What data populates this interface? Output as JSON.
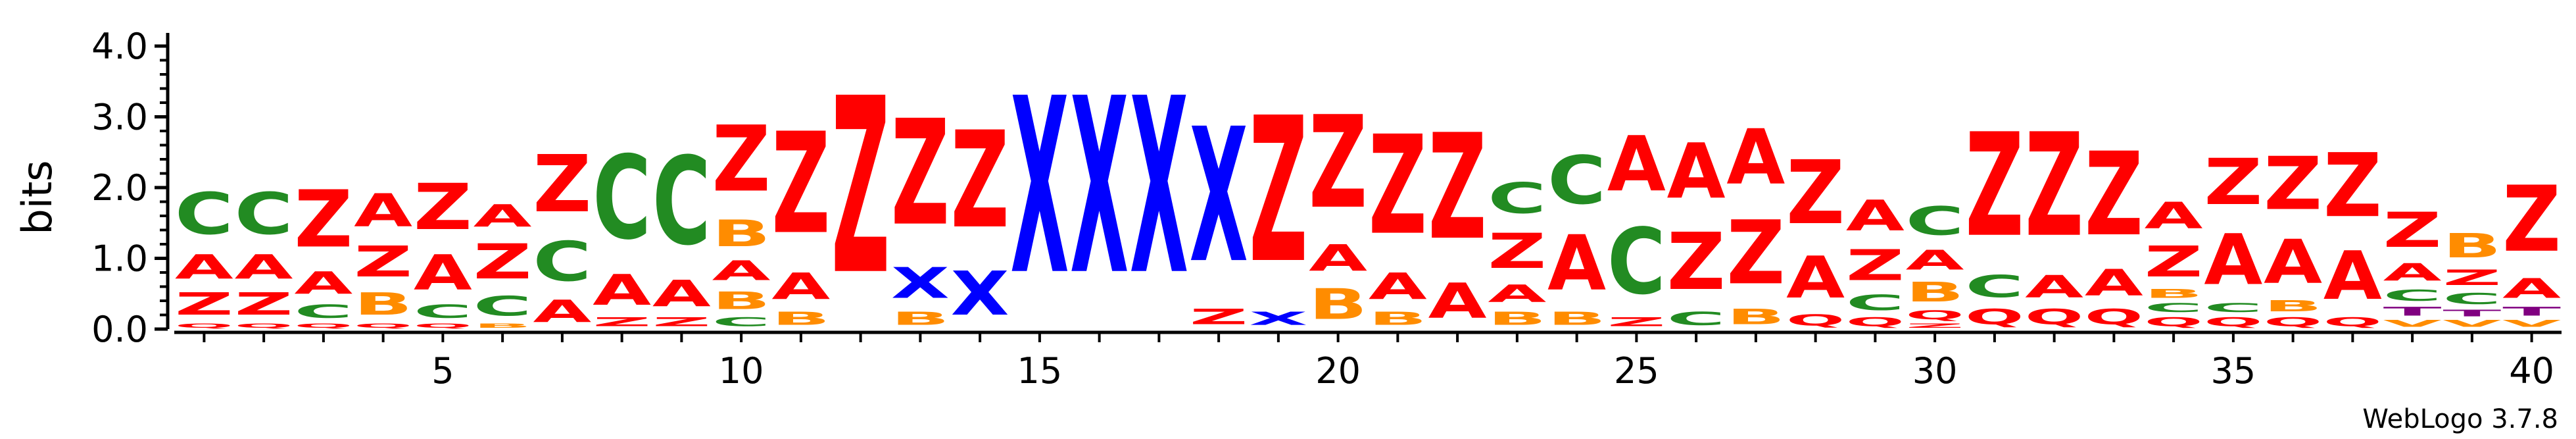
{
  "chart_data": {
    "type": "sequence-logo",
    "title": "",
    "ylabel": "bits",
    "xlabel": "",
    "ylim": [
      0,
      4.0
    ],
    "y_ticks": [
      "0.0",
      "1.0",
      "2.0",
      "3.0",
      "4.0"
    ],
    "x_ticks": [
      5,
      10,
      15,
      20,
      25,
      30,
      35,
      40
    ],
    "x_tick_labels": [
      "5",
      "10",
      "15",
      "20",
      "25",
      "30",
      "35",
      "40"
    ],
    "credit": "WebLogo 3.7.8",
    "colors": {
      "A": "#ff0000",
      "Z": "#ff0000",
      "C": "#228b22",
      "B": "#ff8c00",
      "Q": "#ff0000",
      "X": "#0000ff",
      "T": "#800080",
      "V": "#ff8c00"
    },
    "columns": [
      [
        [
          "Q",
          0.1
        ],
        [
          "Z",
          0.5
        ],
        [
          "A",
          0.55
        ],
        [
          "C",
          0.95
        ]
      ],
      [
        [
          "Q",
          0.1
        ],
        [
          "Z",
          0.5
        ],
        [
          "A",
          0.55
        ],
        [
          "C",
          0.95
        ]
      ],
      [
        [
          "Q",
          0.1
        ],
        [
          "C",
          0.3
        ],
        [
          "A",
          0.5
        ],
        [
          "Z",
          1.3
        ]
      ],
      [
        [
          "Q",
          0.1
        ],
        [
          "B",
          0.5
        ],
        [
          "Z",
          0.7
        ],
        [
          "A",
          0.75
        ]
      ],
      [
        [
          "Q",
          0.1
        ],
        [
          "C",
          0.3
        ],
        [
          "A",
          0.8
        ],
        [
          "Z",
          1.05
        ]
      ],
      [
        [
          "B",
          0.1
        ],
        [
          "C",
          0.45
        ],
        [
          "Z",
          0.8
        ],
        [
          "A",
          0.5
        ]
      ],
      [
        [
          "A",
          0.5
        ],
        [
          "C",
          0.9
        ],
        [
          "Z",
          1.3
        ]
      ],
      [
        [
          "Z",
          0.2
        ],
        [
          "A",
          0.7
        ],
        [
          "C",
          1.9
        ]
      ],
      [
        [
          "Z",
          0.2
        ],
        [
          "A",
          0.6
        ],
        [
          "C",
          2.0
        ]
      ],
      [
        [
          "C",
          0.2
        ],
        [
          "B",
          0.4
        ],
        [
          "A",
          0.45
        ],
        [
          "B",
          0.6
        ],
        [
          "Z",
          1.5
        ]
      ],
      [
        [
          "B",
          0.3
        ],
        [
          "A",
          0.6
        ],
        [
          "Z",
          2.3
        ]
      ],
      [
        [
          "Z",
          4.0
        ]
      ],
      [
        [
          "B",
          0.3
        ],
        [
          "X",
          0.7
        ],
        [
          "Z",
          2.4
        ]
      ],
      [
        [
          "X",
          1.0
        ],
        [
          "Z",
          2.2
        ]
      ],
      [
        [
          "X",
          4.0
        ]
      ],
      [
        [
          "X",
          4.0
        ]
      ],
      [
        [
          "X",
          4.0
        ]
      ],
      [
        [
          "Z",
          0.35
        ],
        [
          "X",
          3.05
        ]
      ],
      [
        [
          "X",
          0.3
        ],
        [
          "Z",
          3.3
        ]
      ],
      [
        [
          "B",
          0.7
        ],
        [
          "A",
          0.6
        ],
        [
          "Z",
          2.1
        ]
      ],
      [
        [
          "B",
          0.3
        ],
        [
          "A",
          0.6
        ],
        [
          "Z",
          2.25
        ]
      ],
      [
        [
          "A",
          0.8
        ],
        [
          "Z",
          2.4
        ]
      ],
      [
        [
          "B",
          0.3
        ],
        [
          "A",
          0.4
        ],
        [
          "Z",
          0.8
        ],
        [
          "C",
          0.7
        ]
      ],
      [
        [
          "B",
          0.3
        ],
        [
          "A",
          1.25
        ],
        [
          "C",
          1.1
        ]
      ],
      [
        [
          "Z",
          0.2
        ],
        [
          "C",
          1.5
        ],
        [
          "A",
          1.25
        ]
      ],
      [
        [
          "C",
          0.3
        ],
        [
          "Z",
          1.3
        ],
        [
          "A",
          1.25
        ]
      ],
      [
        [
          "B",
          0.35
        ],
        [
          "Z",
          1.45
        ],
        [
          "A",
          1.25
        ]
      ],
      [
        [
          "Q",
          0.25
        ],
        [
          "A",
          0.95
        ],
        [
          "Z",
          1.45
        ]
      ],
      [
        [
          "Q",
          0.2
        ],
        [
          "C",
          0.35
        ],
        [
          "Z",
          0.7
        ],
        [
          "A",
          0.7
        ]
      ],
      [
        [
          "Z",
          0.1
        ],
        [
          "Q",
          0.2
        ],
        [
          "B",
          0.45
        ],
        [
          "A",
          0.45
        ],
        [
          "C",
          0.65
        ]
      ],
      [
        [
          "Q",
          0.35
        ],
        [
          "C",
          0.5
        ],
        [
          "Z",
          2.35
        ]
      ],
      [
        [
          "Q",
          0.35
        ],
        [
          "A",
          0.5
        ],
        [
          "Z",
          2.35
        ]
      ],
      [
        [
          "Q",
          0.35
        ],
        [
          "A",
          0.6
        ],
        [
          "Z",
          1.9
        ]
      ],
      [
        [
          "Q",
          0.2
        ],
        [
          "C",
          0.2
        ],
        [
          "B",
          0.2
        ],
        [
          "Z",
          0.7
        ],
        [
          "A",
          0.6
        ]
      ],
      [
        [
          "Q",
          0.2
        ],
        [
          "C",
          0.2
        ],
        [
          "A",
          1.15
        ],
        [
          "Z",
          1.05
        ]
      ],
      [
        [
          "Q",
          0.2
        ],
        [
          "B",
          0.25
        ],
        [
          "A",
          1.0
        ],
        [
          "Z",
          1.2
        ]
      ],
      [
        [
          "Q",
          0.2
        ],
        [
          "A",
          1.1
        ],
        [
          "Z",
          1.45
        ]
      ],
      [
        [
          "V",
          0.15
        ],
        [
          "T",
          0.2
        ],
        [
          "C",
          0.25
        ],
        [
          "A",
          0.4
        ],
        [
          "Z",
          0.8
        ]
      ],
      [
        [
          "V",
          0.15
        ],
        [
          "T",
          0.15
        ],
        [
          "C",
          0.25
        ],
        [
          "Z",
          0.35
        ],
        [
          "B",
          0.55
        ]
      ],
      [
        [
          "V",
          0.15
        ],
        [
          "T",
          0.2
        ],
        [
          "A",
          0.45
        ],
        [
          "Z",
          1.5
        ]
      ]
    ]
  }
}
